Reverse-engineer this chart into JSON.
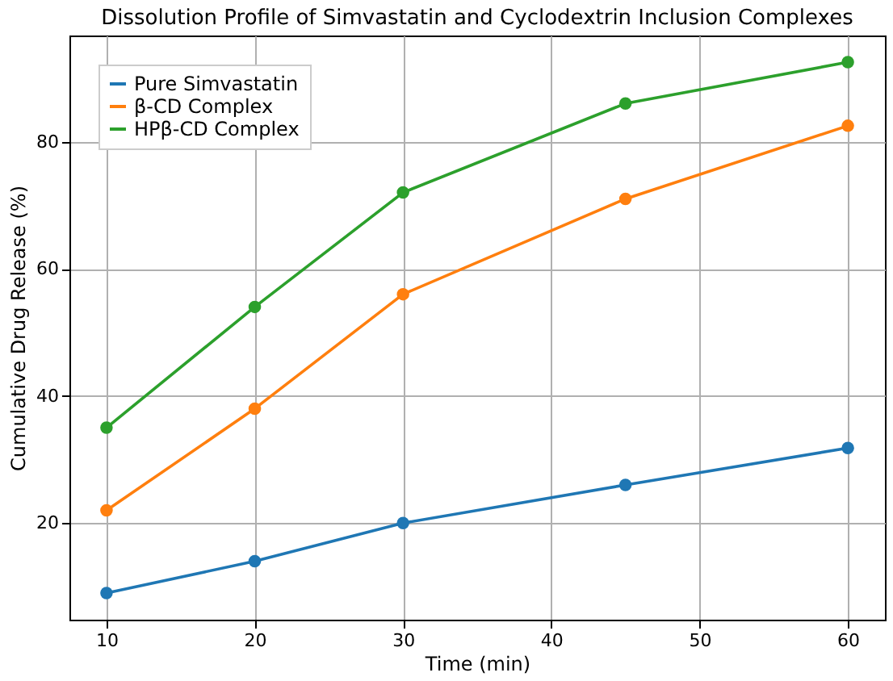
{
  "chart_data": {
    "type": "line",
    "title": "Dissolution Profile of Simvastatin and Cyclodextrin Inclusion Complexes",
    "xlabel": "Time (min)",
    "ylabel": "Cumulative Drug Release (%)",
    "x": [
      10,
      20,
      30,
      45,
      60
    ],
    "series": [
      {
        "name": "Pure Simvastatin",
        "color": "#1f77b4",
        "values": [
          9,
          14,
          20,
          26,
          31.8
        ]
      },
      {
        "name": "β-CD Complex",
        "color": "#ff7f0e",
        "values": [
          22,
          38,
          56,
          71,
          82.5
        ]
      },
      {
        "name": "HPβ-CD Complex",
        "color": "#2ca02c",
        "values": [
          35,
          54,
          72,
          86,
          92.5
        ]
      }
    ],
    "xlim": [
      7.5,
      62.5
    ],
    "xticks": [
      10,
      20,
      30,
      40,
      50,
      60
    ],
    "ylim": [
      4.8,
      96.7
    ],
    "yticks": [
      20,
      40,
      60,
      80
    ],
    "grid": true,
    "legend": "top left",
    "marker": "circle",
    "line_style": "solid"
  }
}
